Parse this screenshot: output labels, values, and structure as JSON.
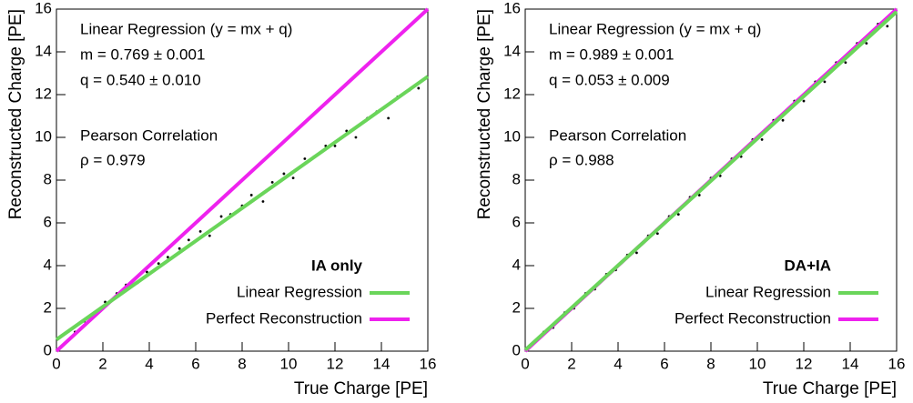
{
  "chart_data": [
    {
      "type": "scatter",
      "xlabel": "True Charge [PE]",
      "ylabel": "Reconstructed Charge [PE]",
      "xlim": [
        0,
        16
      ],
      "ylim": [
        0,
        16
      ],
      "xticks": [
        0,
        2,
        4,
        6,
        8,
        10,
        12,
        14,
        16
      ],
      "yticks": [
        0,
        2,
        4,
        6,
        8,
        10,
        12,
        14,
        16
      ],
      "annotations": [
        "Linear Regression (y = mx + q)",
        "m = 0.769 ± 0.001",
        "q = 0.540 ± 0.010",
        "Pearson Correlation",
        "ρ = 0.979"
      ],
      "legend_title": "IA only",
      "legend_position": "lower right",
      "points": {
        "color": "#000000",
        "x": [
          0.3,
          0.8,
          1.2,
          1.7,
          2.1,
          2.6,
          3.0,
          3.5,
          3.9,
          4.4,
          4.8,
          5.3,
          5.7,
          6.2,
          6.6,
          7.1,
          7.5,
          8.0,
          8.4,
          8.9,
          9.3,
          9.8,
          10.2,
          10.7,
          11.1,
          11.6,
          12.0,
          12.5,
          12.9,
          13.4,
          13.8,
          14.3,
          14.7,
          15.2,
          15.6
        ],
        "values": [
          0.3,
          0.9,
          1.4,
          1.7,
          2.3,
          2.7,
          3.1,
          3.2,
          3.7,
          4.1,
          4.4,
          4.8,
          5.2,
          5.6,
          5.4,
          6.3,
          6.4,
          6.8,
          7.3,
          7.0,
          7.9,
          8.3,
          8.1,
          9.0,
          9.1,
          9.6,
          9.6,
          10.3,
          10.0,
          10.9,
          11.2,
          10.9,
          11.9,
          12.2,
          12.3
        ]
      },
      "series": [
        {
          "name": "Linear Regression",
          "color": "#6ad55a",
          "x": [
            0,
            16
          ],
          "values": [
            0.54,
            12.844
          ]
        },
        {
          "name": "Perfect Reconstruction",
          "color": "#ee22ee",
          "x": [
            0,
            16
          ],
          "values": [
            0,
            16
          ]
        }
      ]
    },
    {
      "type": "scatter",
      "xlabel": "True Charge [PE]",
      "ylabel": "Reconstructed Charge [PE]",
      "xlim": [
        0,
        16
      ],
      "ylim": [
        0,
        16
      ],
      "xticks": [
        0,
        2,
        4,
        6,
        8,
        10,
        12,
        14,
        16
      ],
      "yticks": [
        0,
        2,
        4,
        6,
        8,
        10,
        12,
        14,
        16
      ],
      "annotations": [
        "Linear Regression (y = mx + q)",
        "m = 0.989 ± 0.001",
        "q = 0.053 ± 0.009",
        "Pearson Correlation",
        "ρ = 0.988"
      ],
      "legend_title": "DA+IA",
      "legend_position": "lower right",
      "points": {
        "color": "#000000",
        "x": [
          0.3,
          0.8,
          1.2,
          1.7,
          2.1,
          2.6,
          3.0,
          3.5,
          3.9,
          4.4,
          4.8,
          5.3,
          5.7,
          6.2,
          6.6,
          7.1,
          7.5,
          8.0,
          8.4,
          8.9,
          9.3,
          9.8,
          10.2,
          10.7,
          11.1,
          11.6,
          12.0,
          12.5,
          12.9,
          13.4,
          13.8,
          14.3,
          14.7,
          15.2,
          15.6
        ],
        "values": [
          0.3,
          0.9,
          1.1,
          1.8,
          2.0,
          2.7,
          2.9,
          3.6,
          3.8,
          4.5,
          4.6,
          5.4,
          5.5,
          6.3,
          6.4,
          7.2,
          7.3,
          8.1,
          8.2,
          9.0,
          9.1,
          9.9,
          9.9,
          10.8,
          10.8,
          11.7,
          11.7,
          12.6,
          12.6,
          13.5,
          13.5,
          14.4,
          14.4,
          15.3,
          15.2
        ]
      },
      "series": [
        {
          "name": "Linear Regression",
          "color": "#6ad55a",
          "x": [
            0,
            16
          ],
          "values": [
            0.053,
            15.877
          ]
        },
        {
          "name": "Perfect Reconstruction",
          "color": "#ee22ee",
          "x": [
            0,
            16
          ],
          "values": [
            0,
            16
          ]
        }
      ]
    }
  ]
}
